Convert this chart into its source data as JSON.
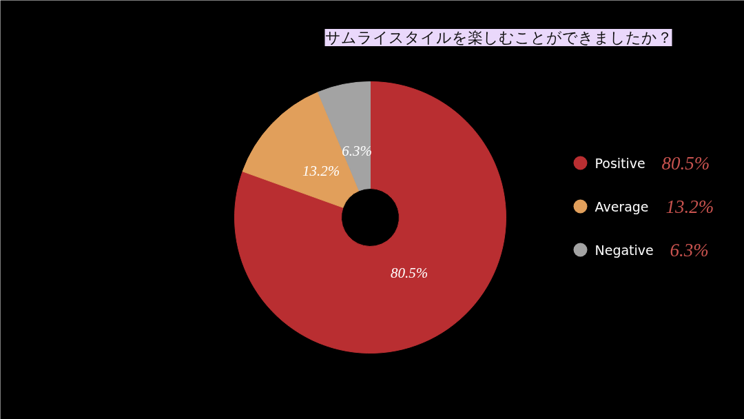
{
  "chart_data": {
    "type": "donut",
    "title": "サムライスタイルを楽しむことができましたか？",
    "categories": [
      "Positive",
      "Average",
      "Negative"
    ],
    "values": [
      80.5,
      13.2,
      6.3
    ],
    "colors": [
      "#b92e31",
      "#e19f5b",
      "#a3a3a3"
    ],
    "value_labels": [
      "80.5%",
      "13.2%",
      "6.3%"
    ],
    "legend": "right"
  }
}
